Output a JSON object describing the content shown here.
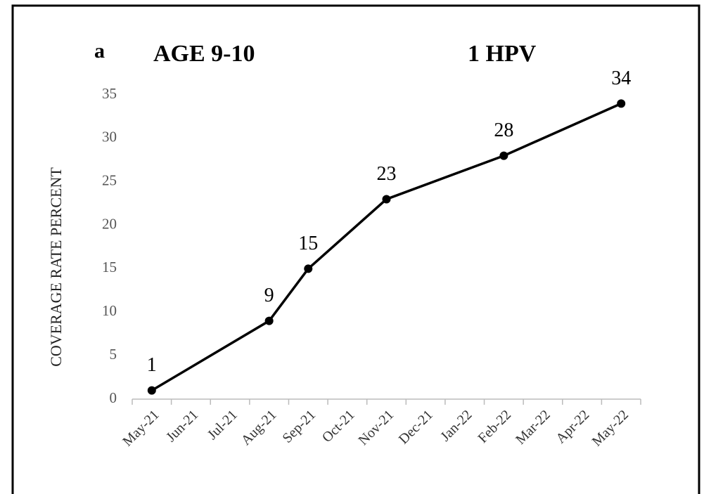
{
  "chart_data": {
    "type": "line",
    "panel_label": "a",
    "title": "AGE 9-10",
    "subtitle": "1 HPV",
    "y_label": "COVERAGE RATE PERCENT",
    "xticks": [
      "May-21",
      "Jun-21",
      "Jul-21",
      "Aug-21",
      "Sep-21",
      "Oct-21",
      "Nov-21",
      "Dec-21",
      "Jan-22",
      "Feb-22",
      "Mar-22",
      "Apr-22",
      "May-22"
    ],
    "x": [
      "May-21",
      "Aug-21",
      "Sep-21",
      "Nov-21",
      "Feb-22",
      "May-22"
    ],
    "values": [
      1,
      9,
      15,
      23,
      28,
      34
    ],
    "color": "#000000",
    "ylim": [
      0,
      35
    ],
    "yticks": [
      0,
      5,
      10,
      15,
      20,
      25,
      30,
      35
    ],
    "grid": false
  }
}
